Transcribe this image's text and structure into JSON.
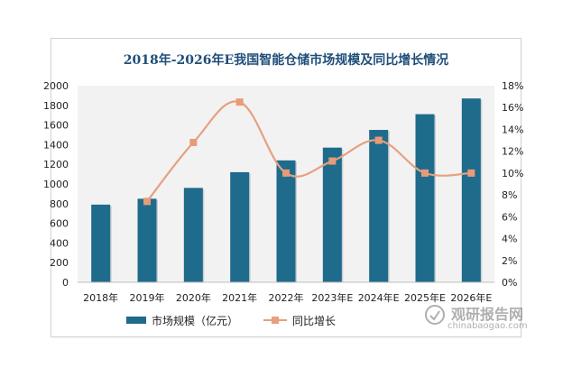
{
  "chart_data": {
    "type": "bar",
    "title": "2018年-2026年E我国智能仓储市场规模及同比增长情况",
    "categories": [
      "2018年",
      "2019年",
      "2020年",
      "2021年",
      "2022年",
      "2023年E",
      "2024年E",
      "2025年E",
      "2026年E"
    ],
    "series": [
      {
        "name": "市场规模（亿元）",
        "type": "bar",
        "axis": "left",
        "values": [
          790,
          850,
          960,
          1120,
          1240,
          1370,
          1550,
          1710,
          1870
        ]
      },
      {
        "name": "同比增长",
        "type": "line",
        "axis": "right",
        "values": [
          null,
          0.074,
          0.128,
          0.165,
          0.1,
          0.111,
          0.13,
          0.1,
          0.1
        ]
      }
    ],
    "left_axis": {
      "ylim": [
        0,
        2000
      ],
      "ticks": [
        "0",
        "200",
        "400",
        "600",
        "800",
        "1000",
        "1200",
        "1400",
        "1600",
        "1800",
        "2000"
      ]
    },
    "right_axis": {
      "ylim": [
        0,
        0.18
      ],
      "ticks": [
        "0%",
        "2%",
        "4%",
        "6%",
        "8%",
        "10%",
        "12%",
        "14%",
        "16%",
        "18%"
      ]
    },
    "grid": false,
    "legend": "bottom",
    "colors": {
      "bar": "#1f6b8c",
      "line": "#e7a07f",
      "plot_bg": "#f2f2f2"
    }
  },
  "watermark": {
    "main": "观研报告网",
    "sub": "chinabaogao.com"
  }
}
